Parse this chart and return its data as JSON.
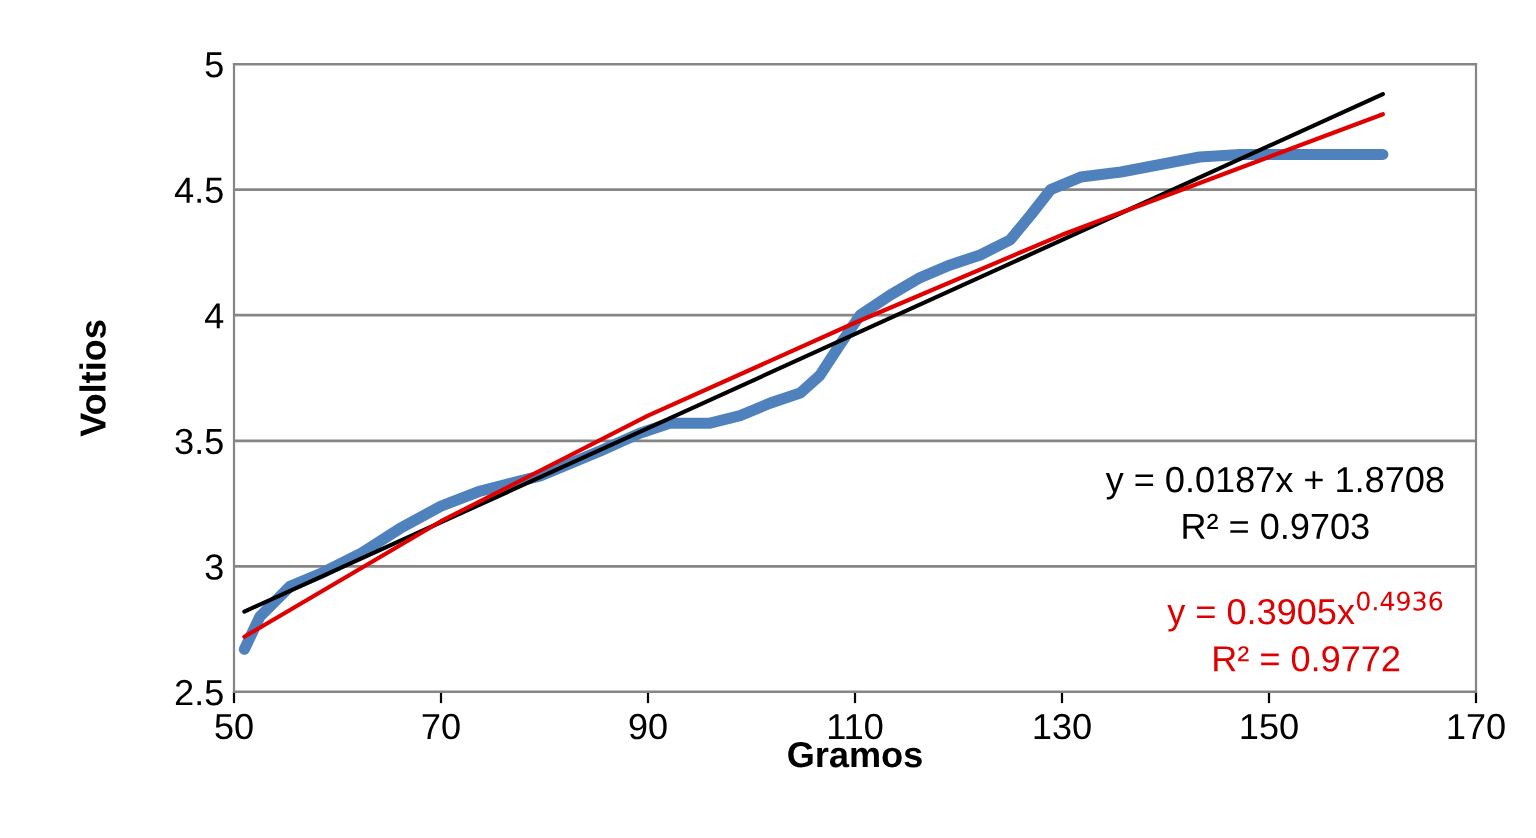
{
  "chart_data": {
    "type": "line",
    "xlabel": "Gramos",
    "ylabel": "Voltios",
    "xlim": [
      50,
      170
    ],
    "xticks": [
      50,
      70,
      90,
      110,
      130,
      150,
      170
    ],
    "ylim": [
      2.5,
      5
    ],
    "yticks": [
      2.5,
      3,
      3.5,
      4,
      4.5,
      5
    ],
    "grid": "y",
    "legend": false,
    "series": [
      {
        "color": "#4f81bd",
        "x": [
          51,
          52.5,
          55.4,
          58.3,
          62.2,
          66,
          70,
          73.8,
          79.6,
          85.4,
          89.2,
          92.1,
          96,
          98.9,
          101.8,
          104.7,
          106.6,
          108.5,
          110.5,
          113.4,
          116.3,
          119.2,
          122.1,
          125,
          127,
          128.9,
          131.8,
          135.7,
          139.5,
          143.3,
          147.2,
          161
        ],
        "values": [
          2.67,
          2.8,
          2.92,
          2.97,
          3.05,
          3.15,
          3.24,
          3.3,
          3.36,
          3.46,
          3.53,
          3.57,
          3.57,
          3.6,
          3.65,
          3.69,
          3.76,
          3.88,
          4.0,
          4.08,
          4.15,
          4.2,
          4.24,
          4.3,
          4.4,
          4.5,
          4.55,
          4.57,
          4.6,
          4.63,
          4.64,
          4.64
        ]
      },
      {
        "name": "y = 0.0187x + 1.8708\nR² = 0.9703",
        "color": "#000000",
        "x": [
          51,
          161
        ],
        "values": [
          2.82,
          4.88
        ]
      },
      {
        "name": "y = 0.3905x$^{0.4936}$\nR² = 0.9772",
        "color": "#e00000",
        "x": [
          51,
          70,
          90,
          110,
          130,
          150,
          161
        ],
        "values": [
          2.72,
          3.18,
          3.6,
          3.97,
          4.32,
          4.63,
          4.8
        ]
      }
    ]
  }
}
